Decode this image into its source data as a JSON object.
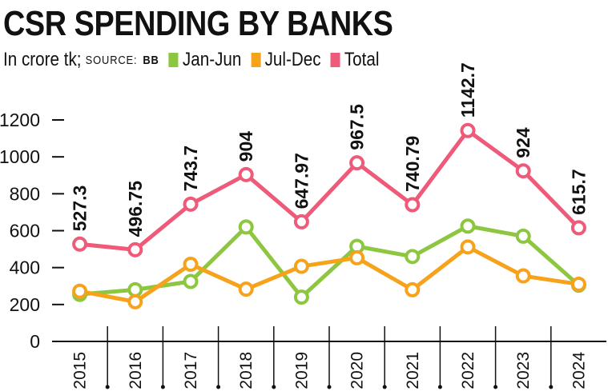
{
  "header": {
    "title": "CSR SPENDING BY BANKS",
    "unit": "In crore tk;",
    "source_label": "SOURCE:",
    "source_value": "BB"
  },
  "legend": [
    {
      "name": "Jan-Jun",
      "color": "#8dc63f"
    },
    {
      "name": "Jul-Dec",
      "color": "#f7a21b"
    },
    {
      "name": "Total",
      "color": "#ee5a78"
    }
  ],
  "chart_data": {
    "type": "line",
    "title": "CSR SPENDING BY BANKS",
    "subtitle": "In crore tk; SOURCE: BB",
    "xlabel": "",
    "ylabel": "",
    "x": [
      "2015",
      "2016",
      "2017",
      "2018",
      "2019",
      "2020",
      "2021",
      "2022",
      "2023",
      "2024"
    ],
    "ylim": [
      0,
      1200
    ],
    "yticks": [
      0,
      200,
      400,
      600,
      800,
      1000,
      1200
    ],
    "legend_position": "top",
    "grid": false,
    "series": [
      {
        "name": "Jan-Jun",
        "color": "#8dc63f",
        "values": [
          255,
          280,
          325,
          620,
          240,
          515,
          460,
          625,
          570,
          305
        ]
      },
      {
        "name": "Jul-Dec",
        "color": "#f7a21b",
        "values": [
          272,
          215,
          418,
          283,
          407,
          453,
          280,
          512,
          355,
          310
        ]
      },
      {
        "name": "Total",
        "color": "#ee5a78",
        "values": [
          527.3,
          496.75,
          743.7,
          904,
          647.97,
          967.5,
          740.79,
          1142.7,
          924,
          615.7
        ]
      }
    ],
    "data_labels": [
      "527.3",
      "496.75",
      "743.7",
      "904",
      "647.97",
      "967.5",
      "740.79",
      "1142.7",
      "924",
      "615.7"
    ]
  }
}
